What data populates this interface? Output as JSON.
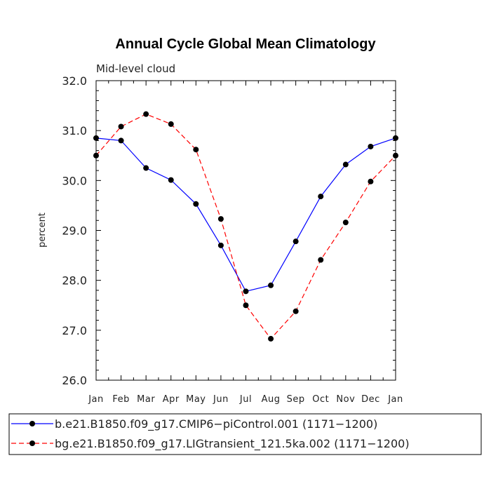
{
  "chart_data": {
    "type": "line",
    "title": "Annual Cycle Global Mean Climatology",
    "subtitle": "Mid-level cloud",
    "xlabel": "",
    "ylabel": "percent",
    "categories": [
      "Jan",
      "Feb",
      "Mar",
      "Apr",
      "May",
      "Jun",
      "Jul",
      "Aug",
      "Sep",
      "Oct",
      "Nov",
      "Dec",
      "Jan"
    ],
    "ylim": [
      26.0,
      32.0
    ],
    "yticks": [
      "26.0",
      "27.0",
      "28.0",
      "29.0",
      "30.0",
      "31.0",
      "32.0"
    ],
    "legend_placement": "bottom",
    "series": [
      {
        "name": "b.e21.B1850.f09_g17.CMIP6−piControl.001 (1171−1200)",
        "color": "#0000ff",
        "dash": "solid",
        "values": [
          30.85,
          30.8,
          30.25,
          30.01,
          29.53,
          28.7,
          27.78,
          27.9,
          28.78,
          29.68,
          30.32,
          30.68,
          30.85
        ]
      },
      {
        "name": "bg.e21.B1850.f09_g17.LIGtransient_121.5ka.002 (1171−1200)",
        "color": "#ff0000",
        "dash": "dashed",
        "values": [
          30.5,
          31.08,
          31.33,
          31.13,
          30.62,
          29.23,
          27.5,
          26.83,
          27.38,
          28.41,
          29.16,
          29.98,
          30.5
        ]
      }
    ]
  }
}
